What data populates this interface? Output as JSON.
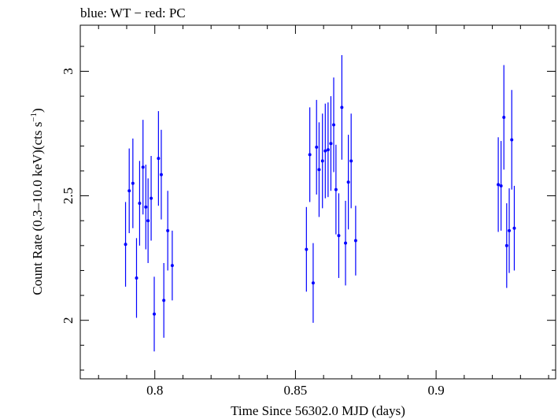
{
  "chart_data": {
    "type": "scatter",
    "title": "blue: WT − red: PC",
    "xlabel": "Time Since 56302.0 MJD (days)",
    "ylabel_main": "Count Rate (0.3–10.0 keV)(cts s",
    "ylabel_sup": "−1",
    "ylabel_close": ")",
    "xlim": [
      0.7735,
      0.9425
    ],
    "ylim": [
      1.765,
      3.185
    ],
    "x_ticks": [
      0.8,
      0.85,
      0.9
    ],
    "x_tick_labels": [
      "0.8",
      "0.85",
      "0.9"
    ],
    "y_ticks": [
      2,
      2.5,
      3
    ],
    "y_tick_labels": [
      "2",
      "2.5",
      "3"
    ],
    "grid": false,
    "series": [
      {
        "color": "#0000ff",
        "points": [
          {
            "x": 0.7896,
            "y": 2.305,
            "err": 0.17
          },
          {
            "x": 0.7909,
            "y": 2.52,
            "err": 0.17
          },
          {
            "x": 0.7922,
            "y": 2.55,
            "err": 0.18
          },
          {
            "x": 0.7935,
            "y": 2.17,
            "err": 0.16
          },
          {
            "x": 0.7946,
            "y": 2.47,
            "err": 0.17
          },
          {
            "x": 0.7958,
            "y": 2.615,
            "err": 0.19
          },
          {
            "x": 0.7968,
            "y": 2.455,
            "err": 0.17
          },
          {
            "x": 0.7976,
            "y": 2.4,
            "err": 0.17
          },
          {
            "x": 0.7987,
            "y": 2.49,
            "err": 0.17
          },
          {
            "x": 0.7998,
            "y": 2.025,
            "err": 0.15
          },
          {
            "x": 0.8013,
            "y": 2.65,
            "err": 0.19
          },
          {
            "x": 0.8023,
            "y": 2.585,
            "err": 0.18
          },
          {
            "x": 0.8032,
            "y": 2.08,
            "err": 0.15
          },
          {
            "x": 0.8046,
            "y": 2.36,
            "err": 0.16
          },
          {
            "x": 0.8062,
            "y": 2.22,
            "err": 0.14
          },
          {
            "x": 0.8539,
            "y": 2.285,
            "err": 0.17
          },
          {
            "x": 0.8551,
            "y": 2.665,
            "err": 0.19
          },
          {
            "x": 0.8563,
            "y": 2.15,
            "err": 0.16
          },
          {
            "x": 0.8575,
            "y": 2.695,
            "err": 0.19
          },
          {
            "x": 0.8584,
            "y": 2.605,
            "err": 0.19
          },
          {
            "x": 0.8596,
            "y": 2.64,
            "err": 0.19
          },
          {
            "x": 0.8606,
            "y": 2.68,
            "err": 0.19
          },
          {
            "x": 0.8616,
            "y": 2.685,
            "err": 0.19
          },
          {
            "x": 0.8626,
            "y": 2.71,
            "err": 0.19
          },
          {
            "x": 0.8636,
            "y": 2.785,
            "err": 0.19
          },
          {
            "x": 0.8644,
            "y": 2.525,
            "err": 0.18
          },
          {
            "x": 0.8654,
            "y": 2.34,
            "err": 0.17
          },
          {
            "x": 0.8665,
            "y": 2.855,
            "err": 0.21
          },
          {
            "x": 0.8678,
            "y": 2.31,
            "err": 0.17
          },
          {
            "x": 0.8688,
            "y": 2.555,
            "err": 0.19
          },
          {
            "x": 0.8698,
            "y": 2.64,
            "err": 0.19
          },
          {
            "x": 0.8714,
            "y": 2.32,
            "err": 0.14
          },
          {
            "x": 0.9221,
            "y": 2.545,
            "err": 0.19
          },
          {
            "x": 0.9231,
            "y": 2.54,
            "err": 0.18
          },
          {
            "x": 0.9241,
            "y": 2.815,
            "err": 0.21
          },
          {
            "x": 0.9251,
            "y": 2.3,
            "err": 0.17
          },
          {
            "x": 0.926,
            "y": 2.36,
            "err": 0.17
          },
          {
            "x": 0.9269,
            "y": 2.725,
            "err": 0.2
          },
          {
            "x": 0.9278,
            "y": 2.37,
            "err": 0.17
          }
        ]
      }
    ]
  }
}
